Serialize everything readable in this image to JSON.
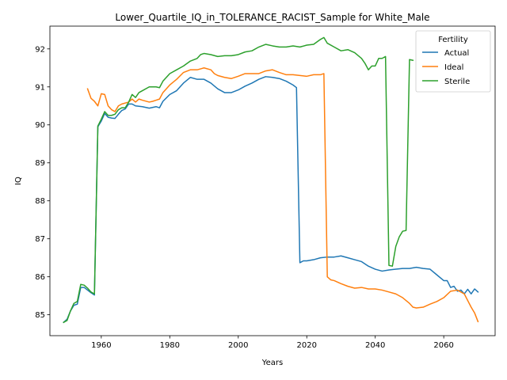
{
  "chart_data": {
    "type": "line",
    "title": "Lower_Quartile_IQ_in_TOLERANCE_RACIST_Sample for White_Male",
    "xlabel": "Years",
    "ylabel": "IQ",
    "xlim": [
      1945,
      2075
    ],
    "ylim": [
      84.45,
      92.6
    ],
    "xticks": [
      1960,
      1980,
      2000,
      2020,
      2040,
      2060
    ],
    "yticks": [
      85,
      86,
      87,
      88,
      89,
      90,
      91,
      92
    ],
    "grid": false,
    "legend": {
      "title": "Fertility",
      "placement": "top-right"
    },
    "series": [
      {
        "name": "Actual",
        "color": "#1f77b4",
        "points": [
          [
            1949,
            84.8
          ],
          [
            1950,
            84.88
          ],
          [
            1951,
            85.1
          ],
          [
            1952,
            85.25
          ],
          [
            1953,
            85.28
          ],
          [
            1954,
            85.72
          ],
          [
            1955,
            85.72
          ],
          [
            1956,
            85.65
          ],
          [
            1957,
            85.58
          ],
          [
            1958,
            85.52
          ],
          [
            1959,
            89.95
          ],
          [
            1960,
            90.1
          ],
          [
            1961,
            90.3
          ],
          [
            1962,
            90.2
          ],
          [
            1963,
            90.18
          ],
          [
            1964,
            90.17
          ],
          [
            1965,
            90.28
          ],
          [
            1966,
            90.38
          ],
          [
            1967,
            90.42
          ],
          [
            1968,
            90.55
          ],
          [
            1969,
            90.55
          ],
          [
            1970,
            90.5
          ],
          [
            1972,
            90.48
          ],
          [
            1974,
            90.44
          ],
          [
            1976,
            90.48
          ],
          [
            1977,
            90.45
          ],
          [
            1978,
            90.62
          ],
          [
            1980,
            90.8
          ],
          [
            1982,
            90.9
          ],
          [
            1984,
            91.1
          ],
          [
            1986,
            91.25
          ],
          [
            1988,
            91.2
          ],
          [
            1990,
            91.2
          ],
          [
            1992,
            91.1
          ],
          [
            1994,
            90.95
          ],
          [
            1996,
            90.85
          ],
          [
            1998,
            90.85
          ],
          [
            2000,
            90.92
          ],
          [
            2002,
            91.02
          ],
          [
            2004,
            91.1
          ],
          [
            2006,
            91.2
          ],
          [
            2008,
            91.27
          ],
          [
            2010,
            91.25
          ],
          [
            2012,
            91.22
          ],
          [
            2014,
            91.15
          ],
          [
            2016,
            91.05
          ],
          [
            2017,
            90.98
          ],
          [
            2018,
            86.37
          ],
          [
            2019,
            86.42
          ],
          [
            2020,
            86.42
          ],
          [
            2022,
            86.45
          ],
          [
            2024,
            86.5
          ],
          [
            2026,
            86.52
          ],
          [
            2028,
            86.52
          ],
          [
            2030,
            86.55
          ],
          [
            2032,
            86.5
          ],
          [
            2034,
            86.45
          ],
          [
            2036,
            86.4
          ],
          [
            2038,
            86.28
          ],
          [
            2040,
            86.2
          ],
          [
            2042,
            86.15
          ],
          [
            2044,
            86.18
          ],
          [
            2046,
            86.2
          ],
          [
            2048,
            86.22
          ],
          [
            2050,
            86.22
          ],
          [
            2052,
            86.25
          ],
          [
            2054,
            86.22
          ],
          [
            2056,
            86.2
          ],
          [
            2058,
            86.05
          ],
          [
            2060,
            85.9
          ],
          [
            2061,
            85.9
          ],
          [
            2062,
            85.72
          ],
          [
            2063,
            85.75
          ],
          [
            2064,
            85.62
          ],
          [
            2065,
            85.65
          ],
          [
            2066,
            85.55
          ],
          [
            2067,
            85.67
          ],
          [
            2068,
            85.55
          ],
          [
            2069,
            85.68
          ],
          [
            2070,
            85.6
          ]
        ]
      },
      {
        "name": "Ideal",
        "color": "#ff7f0e",
        "points": [
          [
            1956,
            90.95
          ],
          [
            1957,
            90.7
          ],
          [
            1958,
            90.62
          ],
          [
            1959,
            90.5
          ],
          [
            1960,
            90.82
          ],
          [
            1961,
            90.8
          ],
          [
            1962,
            90.5
          ],
          [
            1963,
            90.4
          ],
          [
            1964,
            90.35
          ],
          [
            1965,
            90.5
          ],
          [
            1966,
            90.55
          ],
          [
            1968,
            90.6
          ],
          [
            1969,
            90.68
          ],
          [
            1970,
            90.6
          ],
          [
            1971,
            90.68
          ],
          [
            1972,
            90.65
          ],
          [
            1974,
            90.6
          ],
          [
            1975,
            90.62
          ],
          [
            1976,
            90.65
          ],
          [
            1977,
            90.68
          ],
          [
            1978,
            90.85
          ],
          [
            1980,
            91.05
          ],
          [
            1982,
            91.2
          ],
          [
            1984,
            91.38
          ],
          [
            1986,
            91.45
          ],
          [
            1988,
            91.45
          ],
          [
            1990,
            91.5
          ],
          [
            1992,
            91.45
          ],
          [
            1993,
            91.35
          ],
          [
            1994,
            91.3
          ],
          [
            1996,
            91.25
          ],
          [
            1998,
            91.22
          ],
          [
            2000,
            91.28
          ],
          [
            2002,
            91.35
          ],
          [
            2004,
            91.35
          ],
          [
            2006,
            91.35
          ],
          [
            2008,
            91.42
          ],
          [
            2010,
            91.45
          ],
          [
            2012,
            91.38
          ],
          [
            2014,
            91.32
          ],
          [
            2016,
            91.32
          ],
          [
            2018,
            91.3
          ],
          [
            2020,
            91.28
          ],
          [
            2022,
            91.32
          ],
          [
            2024,
            91.32
          ],
          [
            2025,
            91.35
          ],
          [
            2026,
            86
          ],
          [
            2027,
            85.92
          ],
          [
            2028,
            85.9
          ],
          [
            2030,
            85.82
          ],
          [
            2032,
            85.75
          ],
          [
            2034,
            85.7
          ],
          [
            2036,
            85.72
          ],
          [
            2038,
            85.68
          ],
          [
            2040,
            85.68
          ],
          [
            2042,
            85.65
          ],
          [
            2044,
            85.6
          ],
          [
            2046,
            85.55
          ],
          [
            2048,
            85.45
          ],
          [
            2050,
            85.3
          ],
          [
            2051,
            85.2
          ],
          [
            2052,
            85.18
          ],
          [
            2054,
            85.2
          ],
          [
            2056,
            85.28
          ],
          [
            2058,
            85.35
          ],
          [
            2060,
            85.45
          ],
          [
            2062,
            85.62
          ],
          [
            2064,
            85.65
          ],
          [
            2066,
            85.55
          ],
          [
            2068,
            85.2
          ],
          [
            2069,
            85.05
          ],
          [
            2070,
            84.82
          ]
        ]
      },
      {
        "name": "Sterile",
        "color": "#2ca02c",
        "points": [
          [
            1949,
            84.8
          ],
          [
            1950,
            84.85
          ],
          [
            1951,
            85.1
          ],
          [
            1952,
            85.3
          ],
          [
            1953,
            85.35
          ],
          [
            1954,
            85.8
          ],
          [
            1955,
            85.78
          ],
          [
            1956,
            85.7
          ],
          [
            1957,
            85.6
          ],
          [
            1958,
            85.55
          ],
          [
            1959,
            89.97
          ],
          [
            1960,
            90.15
          ],
          [
            1961,
            90.35
          ],
          [
            1962,
            90.25
          ],
          [
            1963,
            90.25
          ],
          [
            1964,
            90.28
          ],
          [
            1965,
            90.4
          ],
          [
            1966,
            90.45
          ],
          [
            1967,
            90.45
          ],
          [
            1968,
            90.6
          ],
          [
            1969,
            90.8
          ],
          [
            1970,
            90.72
          ],
          [
            1971,
            90.85
          ],
          [
            1972,
            90.9
          ],
          [
            1974,
            91
          ],
          [
            1976,
            91.0
          ],
          [
            1977,
            90.98
          ],
          [
            1978,
            91.15
          ],
          [
            1980,
            91.35
          ],
          [
            1982,
            91.45
          ],
          [
            1984,
            91.55
          ],
          [
            1986,
            91.68
          ],
          [
            1988,
            91.75
          ],
          [
            1989,
            91.85
          ],
          [
            1990,
            91.88
          ],
          [
            1992,
            91.85
          ],
          [
            1994,
            91.8
          ],
          [
            1996,
            91.82
          ],
          [
            1998,
            91.82
          ],
          [
            2000,
            91.85
          ],
          [
            2002,
            91.92
          ],
          [
            2004,
            91.95
          ],
          [
            2006,
            92.05
          ],
          [
            2008,
            92.12
          ],
          [
            2010,
            92.08
          ],
          [
            2012,
            92.05
          ],
          [
            2014,
            92.05
          ],
          [
            2016,
            92.08
          ],
          [
            2018,
            92.05
          ],
          [
            2020,
            92.1
          ],
          [
            2022,
            92.12
          ],
          [
            2024,
            92.25
          ],
          [
            2025,
            92.3
          ],
          [
            2026,
            92.15
          ],
          [
            2028,
            92.05
          ],
          [
            2030,
            91.95
          ],
          [
            2032,
            91.98
          ],
          [
            2034,
            91.9
          ],
          [
            2036,
            91.75
          ],
          [
            2037,
            91.62
          ],
          [
            2038,
            91.45
          ],
          [
            2039,
            91.55
          ],
          [
            2040,
            91.55
          ],
          [
            2041,
            91.75
          ],
          [
            2042,
            91.75
          ],
          [
            2043,
            91.8
          ],
          [
            2044,
            86.3
          ],
          [
            2045,
            86.28
          ],
          [
            2046,
            86.8
          ],
          [
            2047,
            87.05
          ],
          [
            2048,
            87.2
          ],
          [
            2049,
            87.22
          ],
          [
            2050,
            91.72
          ],
          [
            2051,
            91.7
          ]
        ]
      }
    ]
  }
}
